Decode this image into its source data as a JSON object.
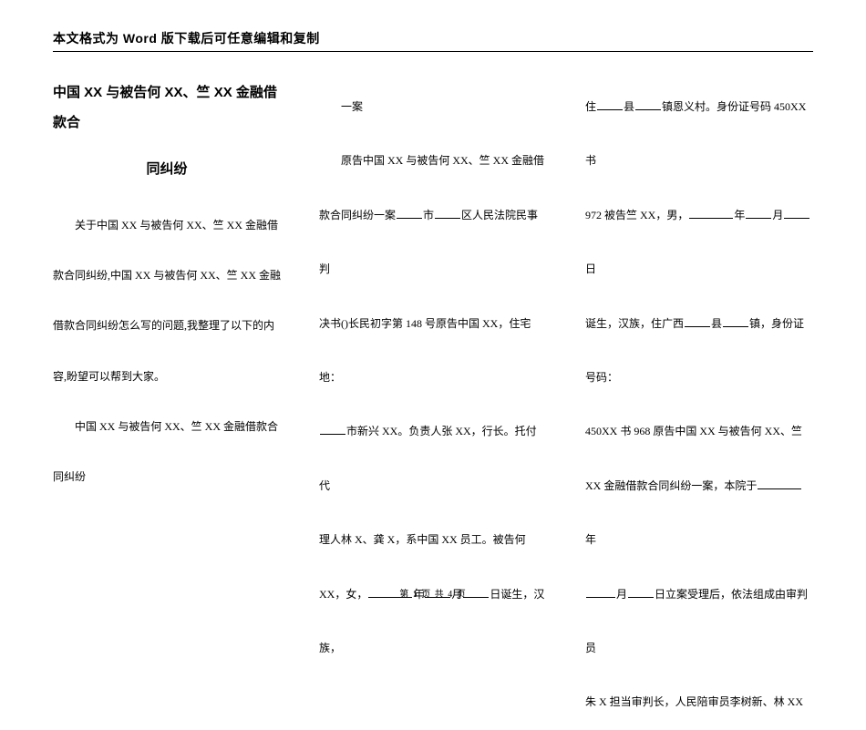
{
  "header": "本文格式为 Word 版下载后可任意编辑和复制",
  "title_l1": "中国 XX 与被告何 XX、竺 XX 金融借款合",
  "title_l2": "同纠纷",
  "col1": {
    "p1": "关于中国 XX 与被告何 XX、竺 XX 金融借",
    "p2": "款合同纠纷,中国 XX 与被告何 XX、竺 XX 金融",
    "p3": "借款合同纠纷怎么写的问题,我整理了以下的内",
    "p4": "容,盼望可以帮到大家。",
    "p5": "中国 XX 与被告何 XX、竺 XX 金融借款合",
    "p6": "同纠纷"
  },
  "col2": {
    "p1": "一案",
    "p2a": "原告中国 XX 与被告何 XX、竺 XX 金融借",
    "p3_pre": "款合同纠纷一案",
    "p3_mid1": "市",
    "p3_mid2": "区人民法院民事判",
    "p4": "决书()长民初字第 148 号原告中国 XX，住宅地：",
    "p5_pre": "",
    "p5_a": "市新兴 XX。负责人张 XX，行长。托付代",
    "p6": "理人林 X、龚 X，系中国 XX 员工。被告何",
    "p7_a": "XX，女，",
    "p7_b": "年",
    "p7_c": "月",
    "p7_d": "日诞生，汉族，"
  },
  "col3": {
    "p1_a": "住",
    "p1_b": "县",
    "p1_c": "镇恩义村。身份证号码 450XX 书",
    "p2_a": "972 被告竺 XX，男，",
    "p2_b": "年",
    "p2_c": "月",
    "p2_d": "日",
    "p3_a": "诞生，汉族，住广西",
    "p3_b": "县",
    "p3_c": "镇，身份证号码：",
    "p4": "450XX 书 968 原告中国 XX 与被告何 XX、竺",
    "p5_a": "XX 金融借款合同纠纷一案，本院于",
    "p5_b": "年",
    "p6_a": "",
    "p6_b": "月",
    "p6_c": "日立案受理后，依法组成由审判员",
    "p7": "朱 X 担当审判长，人民陪审员李树新、林 XX"
  },
  "footer": "第 1 页 共 4 页",
  "uline": {
    "w24": 24,
    "w28": 28,
    "w32": 32,
    "w40": 40,
    "w48": 48,
    "w56": 56
  }
}
